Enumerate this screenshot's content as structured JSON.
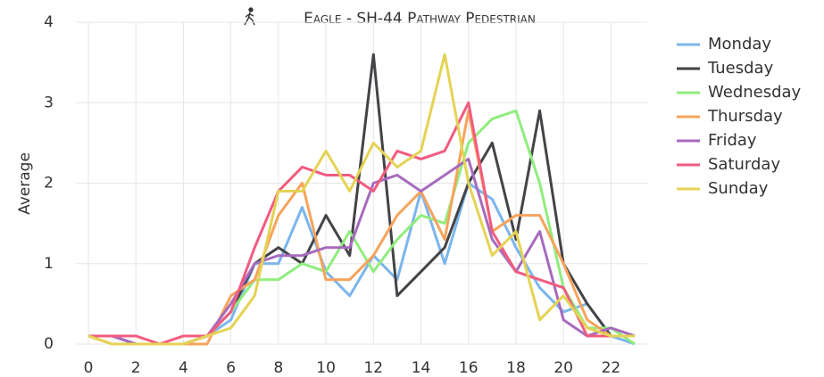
{
  "chart_data": {
    "type": "line",
    "title": "Eagle - SH-44 Pathway Pedestrian",
    "ylabel": "Average",
    "x": [
      0,
      1,
      2,
      3,
      4,
      5,
      6,
      7,
      8,
      9,
      10,
      11,
      12,
      13,
      14,
      15,
      16,
      17,
      18,
      19,
      20,
      21,
      22,
      23
    ],
    "xlim": [
      0,
      23
    ],
    "xticks": [
      0,
      2,
      4,
      6,
      8,
      10,
      12,
      14,
      16,
      18,
      20,
      22
    ],
    "ylim": [
      0,
      4
    ],
    "yticks": [
      0,
      1,
      2,
      3,
      4
    ],
    "grid": true,
    "legend": "right",
    "series": [
      {
        "name": "Monday",
        "color": "#7cb5ec",
        "values": [
          0.1,
          0.1,
          0,
          0,
          0,
          0.1,
          0.3,
          1.0,
          1.0,
          1.7,
          0.9,
          0.6,
          1.1,
          0.8,
          1.9,
          1.0,
          2.0,
          1.8,
          1.2,
          0.7,
          0.4,
          0.5,
          0.1,
          0
        ]
      },
      {
        "name": "Tuesday",
        "color": "#434348",
        "values": [
          0.1,
          0.1,
          0,
          0,
          0,
          0.1,
          0.4,
          1.0,
          1.2,
          1.0,
          1.6,
          1.1,
          3.6,
          0.6,
          0.9,
          1.2,
          2.0,
          2.5,
          1.3,
          2.9,
          1.0,
          0.5,
          0.1,
          0.1
        ]
      },
      {
        "name": "Wednesday",
        "color": "#90ed7d",
        "values": [
          0.1,
          0,
          0,
          0,
          0,
          0.1,
          0.4,
          0.8,
          0.8,
          1.0,
          0.9,
          1.4,
          0.9,
          1.3,
          1.6,
          1.5,
          2.5,
          2.8,
          2.9,
          2.0,
          0.7,
          0.2,
          0.2,
          0
        ]
      },
      {
        "name": "Thursday",
        "color": "#f7a35c",
        "values": [
          0.1,
          0,
          0,
          0,
          0,
          0,
          0.6,
          0.8,
          1.6,
          2.0,
          0.8,
          0.8,
          1.1,
          1.6,
          1.9,
          1.3,
          2.9,
          1.4,
          1.6,
          1.6,
          1.0,
          0.3,
          0.1,
          0.1
        ]
      },
      {
        "name": "Friday",
        "color": "#a66bbe",
        "values": [
          0.1,
          0.1,
          0,
          0,
          0,
          0.1,
          0.5,
          1.0,
          1.1,
          1.1,
          1.2,
          1.2,
          2.0,
          2.1,
          1.9,
          2.1,
          2.3,
          1.3,
          0.9,
          1.4,
          0.3,
          0.1,
          0.2,
          0.1
        ]
      },
      {
        "name": "Saturday",
        "color": "#f15c80",
        "values": [
          0.1,
          0.1,
          0.1,
          0,
          0.1,
          0.1,
          0.4,
          1.2,
          1.9,
          2.2,
          2.1,
          2.1,
          1.9,
          2.4,
          2.3,
          2.4,
          3.0,
          1.4,
          0.9,
          0.8,
          0.7,
          0.1,
          0.1,
          0.1
        ]
      },
      {
        "name": "Sunday",
        "color": "#e4d354",
        "values": [
          0.1,
          0,
          0,
          0,
          0,
          0.1,
          0.2,
          0.6,
          1.9,
          1.9,
          2.4,
          1.9,
          2.5,
          2.2,
          2.4,
          3.6,
          2.0,
          1.1,
          1.4,
          0.3,
          0.6,
          0.2,
          0.1,
          0.1
        ]
      }
    ]
  }
}
